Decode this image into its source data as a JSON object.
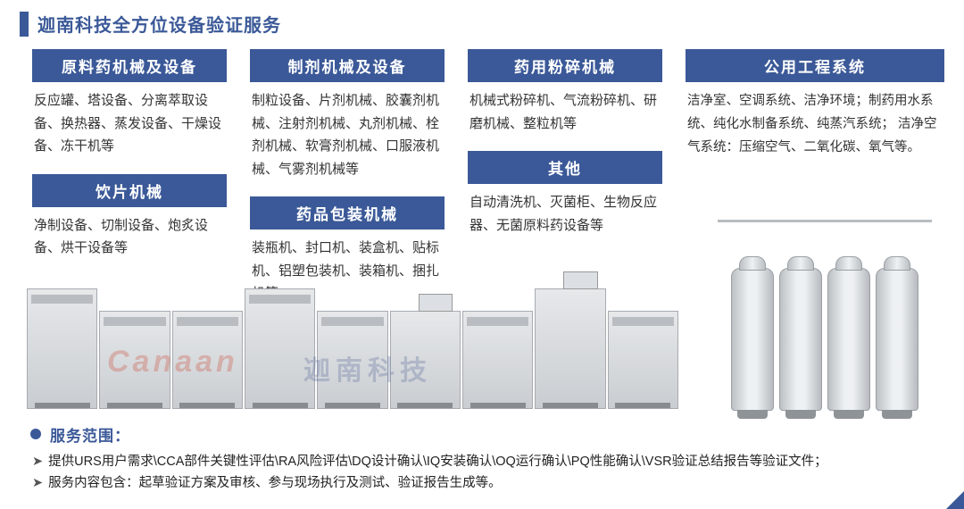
{
  "header": {
    "title": "迦南科技全方位设备验证服务"
  },
  "colors": {
    "brand": "#3b5998",
    "text": "#333333",
    "bg": "#ffffff"
  },
  "cards": {
    "c1": {
      "title": "原料药机械及设备",
      "body": "反应罐、塔设备、分离萃取设备、换热器、蒸发设备、干燥设备、冻干机等"
    },
    "c2": {
      "title": "制剂机械及设备",
      "body": "制粒设备、片剂机械、胶囊剂机械、注射剂机械、丸剂机械、栓剂机械、软膏剂机械、口服液机械、气雾剂机械等"
    },
    "c3": {
      "title": "药用粉碎机械",
      "body": "机械式粉碎机、气流粉碎机、研磨机械、整粒机等"
    },
    "c4": {
      "title": "公用工程系统",
      "body": "洁净室、空调系统、洁净环境；制药用水系统、纯化水制备系统、纯蒸汽系统；\n洁净空气系统：压缩空气、二氧化碳、氧气等。"
    },
    "c5": {
      "title": "饮片机械",
      "body": "净制设备、切制设备、炮炙设备、烘干设备等"
    },
    "c6": {
      "title": "药品包装机械",
      "body": "装瓶机、封口机、装盒机、贴标机、铝塑包装机、装箱机、捆扎机等"
    },
    "c7": {
      "title": "其他",
      "body": "自动清洗机、灭菌柜、生物反应器、无菌原料药设备等"
    }
  },
  "watermark": {
    "brand": "Canaan",
    "cn": "迦南科技"
  },
  "footer": {
    "title": "服务范围：",
    "line1": "提供URS用户需求\\CCA部件关键性评估\\RA风险评估\\DQ设计确认\\IQ安装确认\\OQ运行确认\\PQ性能确认\\VSR验证总结报告等验证文件；",
    "line2": "服务内容包含：起草验证方案及审核、参与现场执行及测试、验证报告生成等。"
  }
}
